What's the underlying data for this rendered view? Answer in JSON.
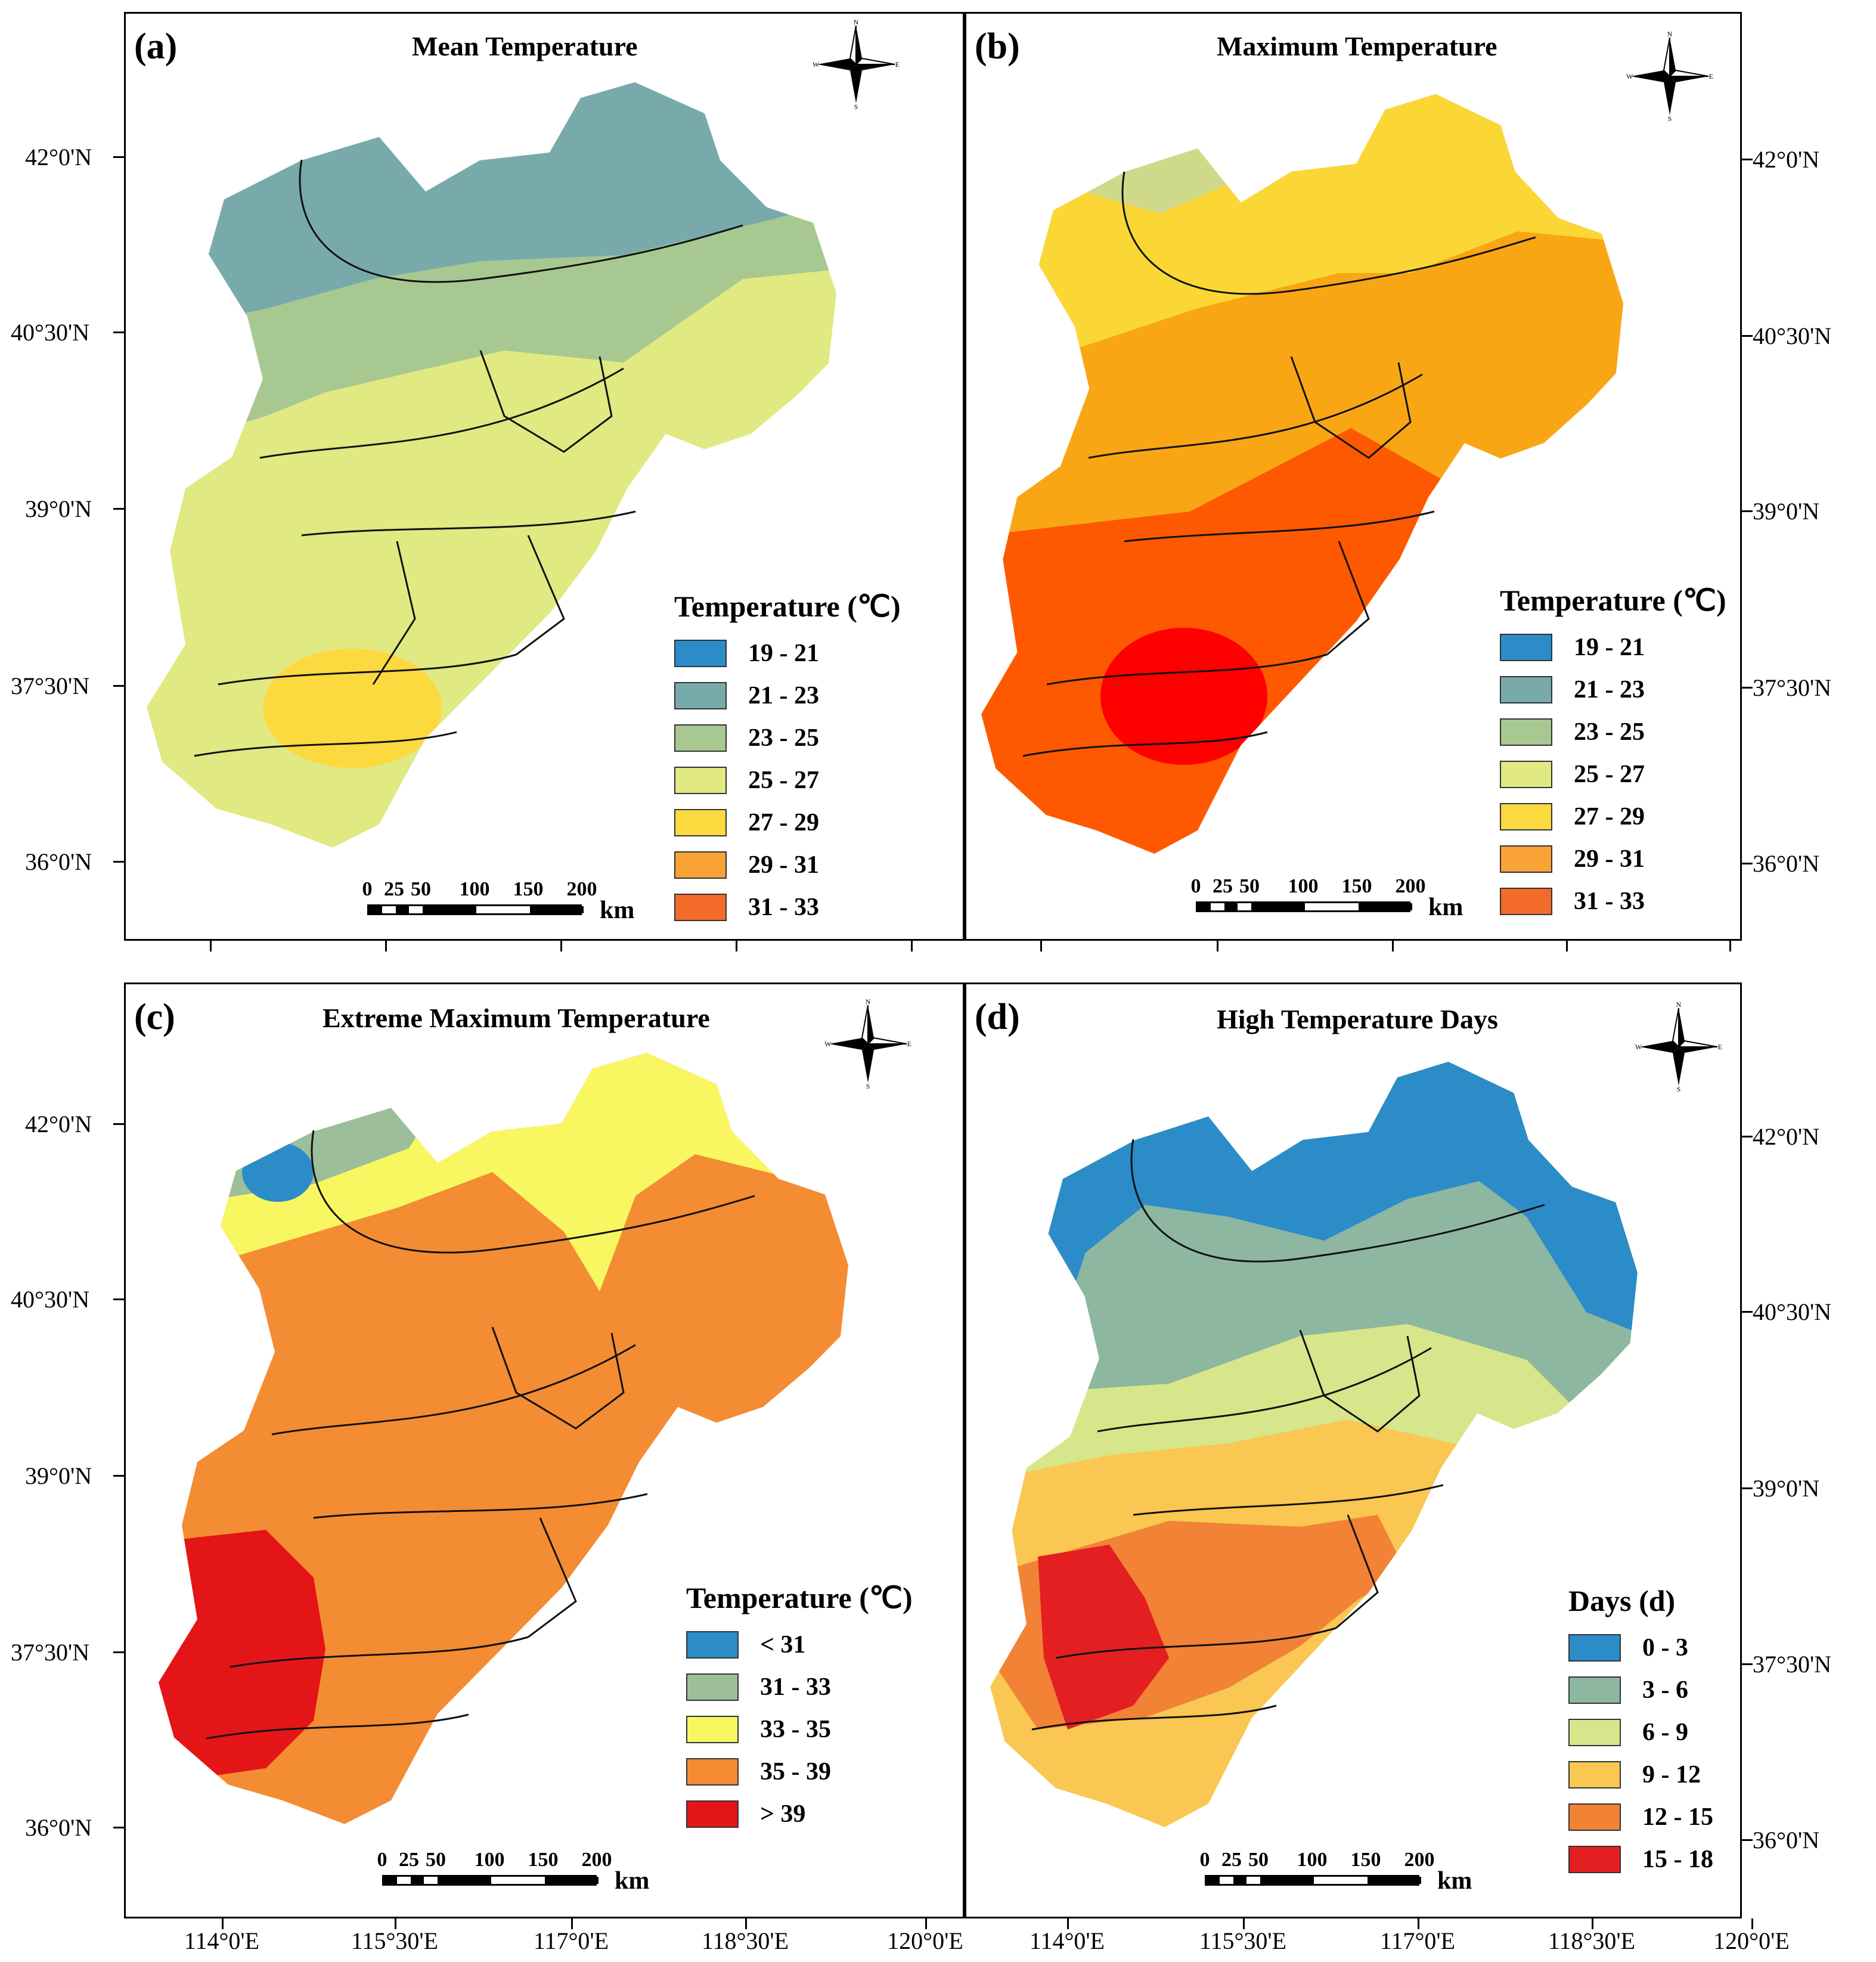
{
  "axes": {
    "lat_labels": [
      "42°0'N",
      "40°30'N",
      "39°0'N",
      "37°30'N",
      "36°0'N"
    ],
    "lon_labels": [
      "114°0'E",
      "115°30'E",
      "117°0'E",
      "118°30'E",
      "120°0'E"
    ]
  },
  "scalebar": {
    "ticks": [
      "0",
      "25",
      "50",
      "100",
      "150",
      "200"
    ],
    "unit": "km"
  },
  "compass": {
    "n": "N",
    "s": "S",
    "e": "E",
    "w": "W"
  },
  "colors": {
    "c19_21": "#2b8cc8",
    "c21_23": "#78aaac",
    "c23_25": "#a8c891",
    "c25_27": "#e0e982",
    "c27_29": "#fdd940",
    "c29_31": "#f9a236",
    "c31_33": "#f36b28",
    "max_yellow": "#fbd735",
    "max_orange": "#f9a614",
    "max_redorange": "#fe5900",
    "max_red": "#fe0000",
    "ext_blue": "#2b8cc8",
    "ext_green": "#9cbe9a",
    "ext_yellow": "#f8f762",
    "ext_orange": "#f48c33",
    "ext_red": "#e41517",
    "d0_3": "#2b8cc8",
    "d3_6": "#8db7a1",
    "d6_9": "#d7e68a",
    "d9_12": "#f9c752",
    "d12_15": "#f28235",
    "d15_18": "#e41f21"
  },
  "panels": {
    "a": {
      "letter": "(a)",
      "title": "Mean Temperature",
      "legend_title": "Temperature (℃)",
      "legend": [
        "19 - 21",
        "21 - 23",
        "23 - 25",
        "25 - 27",
        "27 - 29",
        "29 - 31",
        "31 - 33"
      ]
    },
    "b": {
      "letter": "(b)",
      "title": "Maximum  Temperature",
      "legend_title": "Temperature (℃)",
      "legend": [
        "19 - 21",
        "21 - 23",
        "23 - 25",
        "25 - 27",
        "27 - 29",
        "29 - 31",
        "31 - 33"
      ]
    },
    "c": {
      "letter": "(c)",
      "title": "Extreme  Maximum  Temperature",
      "legend_title": "Temperature (℃)",
      "legend": [
        "< 31",
        "31 - 33",
        "33 - 35",
        "35 - 39",
        "> 39"
      ]
    },
    "d": {
      "letter": "(d)",
      "title": "High Temperature Days",
      "legend_title": "Days (d)",
      "legend": [
        "0 - 3",
        "3 - 6",
        "6 - 9",
        "9 - 12",
        "12 - 15",
        "15 - 18"
      ]
    }
  }
}
